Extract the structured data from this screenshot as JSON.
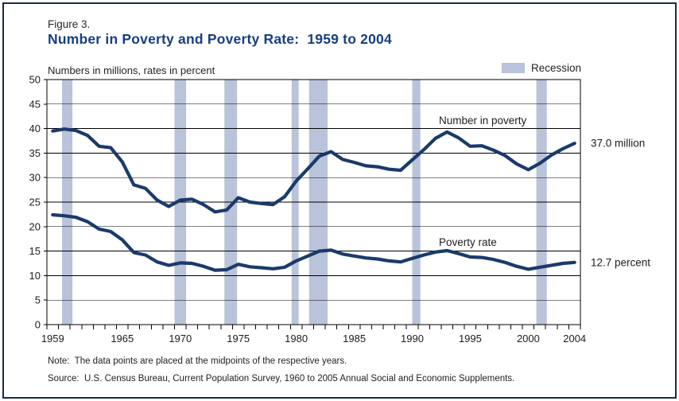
{
  "figure": {
    "label": "Figure 3.",
    "title": "Number in Poverty and Poverty Rate:  1959 to 2004",
    "subtitle": "Numbers in millions, rates in percent",
    "note": "Note:  The data points are placed at the midpoints of the respective years.",
    "source": "Source:  U.S. Census Bureau, Current Population Survey, 1960 to 2005 Annual Social and Economic Supplements."
  },
  "legend": {
    "recession_label": "Recession"
  },
  "colors": {
    "line": "#1a3a6b",
    "recession_band": "#b9c3d9",
    "title": "#173f80",
    "grid": "#000000",
    "frame_border": "#1b2b44"
  },
  "chart_data": {
    "type": "line",
    "title": "Number in Poverty and Poverty Rate:  1959 to 2004",
    "xlabel": "",
    "ylabel": "Numbers in millions, rates in percent",
    "x_axis_range": [
      1959,
      2005
    ],
    "ylim": [
      0,
      50
    ],
    "yticks": [
      0,
      5,
      10,
      15,
      20,
      25,
      30,
      35,
      40,
      45,
      50
    ],
    "xtick_labels": [
      1959,
      1965,
      1970,
      1975,
      1980,
      1985,
      1990,
      1995,
      2000,
      2004
    ],
    "grid": true,
    "points_at_year_midpoints": true,
    "years": [
      1959,
      1960,
      1961,
      1962,
      1963,
      1964,
      1965,
      1966,
      1967,
      1968,
      1969,
      1970,
      1971,
      1972,
      1973,
      1974,
      1975,
      1976,
      1977,
      1978,
      1979,
      1980,
      1981,
      1982,
      1983,
      1984,
      1985,
      1986,
      1987,
      1988,
      1989,
      1990,
      1991,
      1992,
      1993,
      1994,
      1995,
      1996,
      1997,
      1998,
      1999,
      2000,
      2001,
      2002,
      2003,
      2004
    ],
    "series": [
      {
        "name": "Number in poverty",
        "label": "Number in poverty",
        "end_label": "37.0 million",
        "values": [
          39.5,
          39.9,
          39.6,
          38.6,
          36.4,
          36.1,
          33.2,
          28.5,
          27.8,
          25.4,
          24.1,
          25.4,
          25.6,
          24.5,
          23.0,
          23.4,
          25.9,
          25.0,
          24.7,
          24.5,
          26.1,
          29.3,
          31.8,
          34.4,
          35.3,
          33.7,
          33.1,
          32.4,
          32.2,
          31.7,
          31.5,
          33.6,
          35.7,
          38.0,
          39.3,
          38.1,
          36.4,
          36.5,
          35.6,
          34.5,
          32.8,
          31.6,
          32.9,
          34.6,
          35.9,
          37.0
        ]
      },
      {
        "name": "Poverty rate",
        "label": "Poverty rate",
        "end_label": "12.7 percent",
        "values": [
          22.4,
          22.2,
          21.9,
          21.0,
          19.5,
          19.0,
          17.3,
          14.7,
          14.2,
          12.8,
          12.1,
          12.6,
          12.5,
          11.9,
          11.1,
          11.2,
          12.3,
          11.8,
          11.6,
          11.4,
          11.7,
          13.0,
          14.0,
          15.0,
          15.2,
          14.4,
          14.0,
          13.6,
          13.4,
          13.0,
          12.8,
          13.5,
          14.2,
          14.8,
          15.1,
          14.5,
          13.8,
          13.7,
          13.3,
          12.7,
          11.9,
          11.3,
          11.7,
          12.1,
          12.5,
          12.7
        ]
      }
    ],
    "recessions": [
      [
        1960.3,
        1961.2
      ],
      [
        1970.0,
        1971.0
      ],
      [
        1974.3,
        1975.4
      ],
      [
        1980.1,
        1980.7
      ],
      [
        1981.6,
        1983.2
      ],
      [
        1990.5,
        1991.2
      ],
      [
        2001.2,
        2002.1
      ]
    ],
    "legend_entries": [
      "Recession"
    ]
  }
}
